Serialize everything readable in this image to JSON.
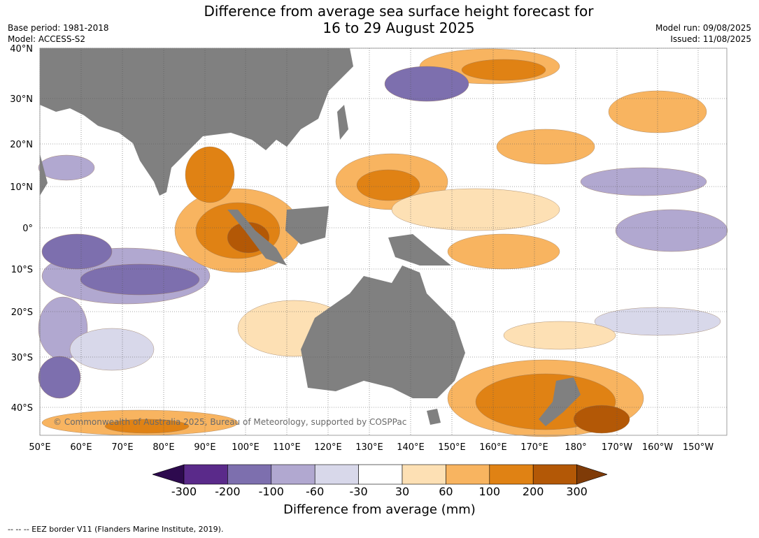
{
  "title_line1": "Difference from average sea surface height forecast for",
  "title_line2": "16 to 29 August 2025",
  "meta_left": [
    "Base period: 1981-2018",
    "Model: ACCESS-S2"
  ],
  "meta_right": [
    "Model run: 09/08/2025",
    "Issued: 11/08/2025"
  ],
  "map": {
    "lat_labels": [
      "40°N",
      "30°N",
      "20°N",
      "10°N",
      "0°",
      "10°S",
      "20°S",
      "30°S",
      "40°S"
    ],
    "lon_labels": [
      "50°E",
      "60°E",
      "70°E",
      "80°E",
      "90°E",
      "100°E",
      "110°E",
      "120°E",
      "130°E",
      "140°E",
      "150°E",
      "160°E",
      "170°E",
      "180°",
      "170°W",
      "160°W",
      "150°W"
    ],
    "copyright": "© Commonwealth of Australia 2025, Bureau of Meteorology, supported by COSPPac",
    "land_color": "#808080"
  },
  "colorbar": {
    "labels": [
      "-300",
      "-200",
      "-100",
      "-60",
      "-30",
      "30",
      "60",
      "100",
      "200",
      "300"
    ],
    "colors": [
      "#2d0a4e",
      "#5a2a8a",
      "#7d6fae",
      "#b1a8d0",
      "#d8d8ea",
      "#ffffff",
      "#fde0b4",
      "#f8b460",
      "#e08214",
      "#b35806",
      "#7f3b08"
    ],
    "title": "Difference from average (mm)"
  },
  "footer": "--  --  -- EEZ border V11 (Flanders Marine Institute, 2019)."
}
